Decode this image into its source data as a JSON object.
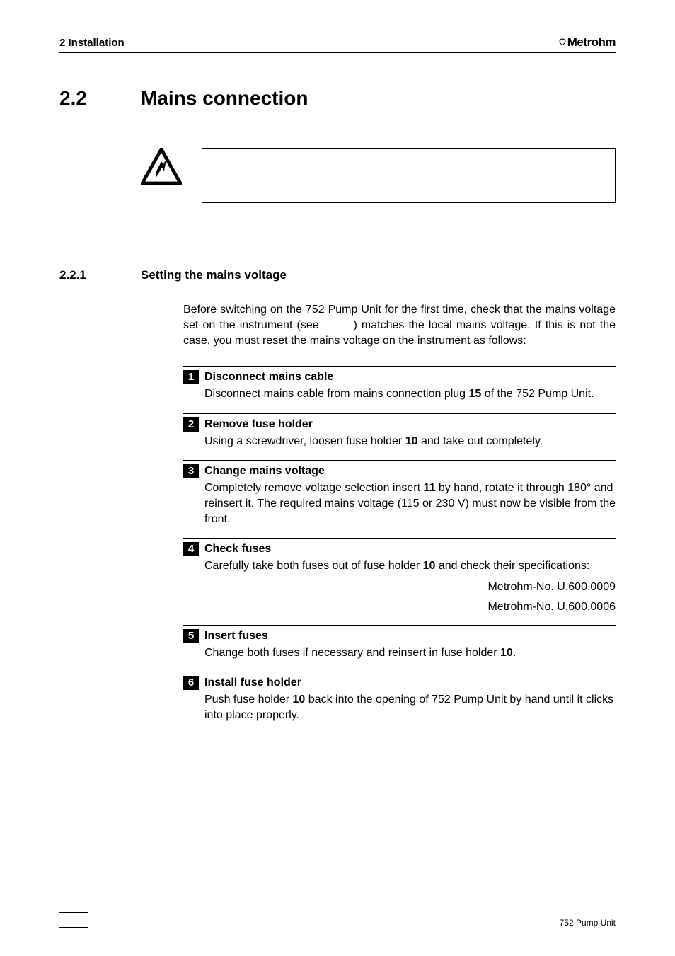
{
  "header": {
    "left": "2 Installation",
    "brand": "Metrohm",
    "brand_symbol": "Ω"
  },
  "section": {
    "num": "2.2",
    "title": "Mains connection"
  },
  "subsection": {
    "num": "2.2.1",
    "title": "Setting the mains voltage"
  },
  "intro_before_ref": "Before switching on the 752 Pump Unit for the first time, check that the mains voltage set on the instrument (see ",
  "intro_after_ref": ") matches the local mains voltage. If this is not the case, you must reset the mains voltage on the instrument as follows:",
  "steps": [
    {
      "n": "1",
      "title": "Disconnect mains cable",
      "body_parts": [
        {
          "t": "Disconnect mains cable from mains connection plug "
        },
        {
          "t": "15",
          "bold": true
        },
        {
          "t": " of the 752 Pump Unit."
        }
      ]
    },
    {
      "n": "2",
      "title": "Remove fuse holder",
      "body_parts": [
        {
          "t": "Using a screwdriver, loosen fuse holder "
        },
        {
          "t": "10",
          "bold": true
        },
        {
          "t": " and take out completely."
        }
      ]
    },
    {
      "n": "3",
      "title": "Change mains voltage",
      "body_parts": [
        {
          "t": "Completely remove voltage selection insert "
        },
        {
          "t": "11",
          "bold": true
        },
        {
          "t": " by hand, rotate it through 180° and reinsert it. The required mains voltage (115 or 230 V) must now be visible from the front."
        }
      ]
    },
    {
      "n": "4",
      "title": "Check fuses",
      "body_parts": [
        {
          "t": "Carefully take both fuses out of fuse holder "
        },
        {
          "t": "10",
          "bold": true
        },
        {
          "t": " and check their specifications:"
        }
      ],
      "specs": [
        "Metrohm-No. U.600.0009",
        "Metrohm-No. U.600.0006"
      ]
    },
    {
      "n": "5",
      "title": "Insert fuses",
      "body_parts": [
        {
          "t": "Change both fuses if necessary and reinsert in fuse holder "
        },
        {
          "t": "10",
          "bold": true
        },
        {
          "t": "."
        }
      ]
    },
    {
      "n": "6",
      "title": "Install fuse holder",
      "body_parts": [
        {
          "t": "Push fuse holder "
        },
        {
          "t": "10",
          "bold": true
        },
        {
          "t": " back into the opening of 752 Pump Unit by hand until it clicks into place properly."
        }
      ]
    }
  ],
  "footer": {
    "right": "752 Pump Unit"
  },
  "colors": {
    "text": "#000000",
    "bg": "#ffffff",
    "stepnum_bg": "#000000",
    "stepnum_fg": "#ffffff"
  }
}
